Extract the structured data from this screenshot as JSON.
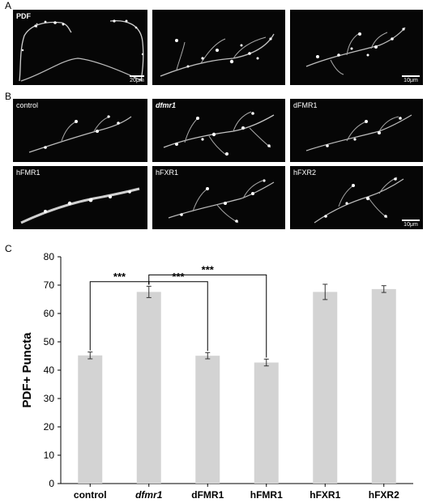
{
  "panels": {
    "a": "A",
    "b": "B",
    "c": "C"
  },
  "micrographs_a": [
    {
      "label": "PDF",
      "scale": "20μm",
      "arrow": "↑"
    },
    {
      "label": "",
      "scale": ""
    },
    {
      "label": "",
      "scale": "10μm"
    }
  ],
  "micrographs_b": [
    {
      "label": "control",
      "style": "normal"
    },
    {
      "label": "dfmr1",
      "style": "italic"
    },
    {
      "label": "dFMR1",
      "style": "normal"
    },
    {
      "label": "hFMR1",
      "style": "normal"
    },
    {
      "label": "hFXR1",
      "style": "normal"
    },
    {
      "label": "hFXR2",
      "style": "normal",
      "scale": "10μm"
    }
  ],
  "chart_data": {
    "type": "bar",
    "categories": [
      "control",
      "dfmr1",
      "dFMR1",
      "hFMR1",
      "hFXR1",
      "hFXR2"
    ],
    "italic_categories": [
      "dfmr1"
    ],
    "values": [
      45.2,
      67.6,
      45.1,
      42.7,
      67.6,
      68.6
    ],
    "errors": [
      1.2,
      2.0,
      1.1,
      1.2,
      2.7,
      1.2
    ],
    "ylabel": "PDF+ Puncta",
    "xlabel": "",
    "ylim": [
      0,
      80
    ],
    "yticks": [
      0,
      10,
      20,
      30,
      40,
      50,
      60,
      70,
      80
    ],
    "bar_color": "#d3d3d3",
    "grid": false,
    "significance": [
      {
        "from": "control",
        "to": "dfmr1",
        "label": "***"
      },
      {
        "from": "dfmr1",
        "to": "dFMR1",
        "label": "***"
      },
      {
        "from": "dfmr1",
        "to": "hFMR1",
        "label": "***"
      }
    ]
  }
}
